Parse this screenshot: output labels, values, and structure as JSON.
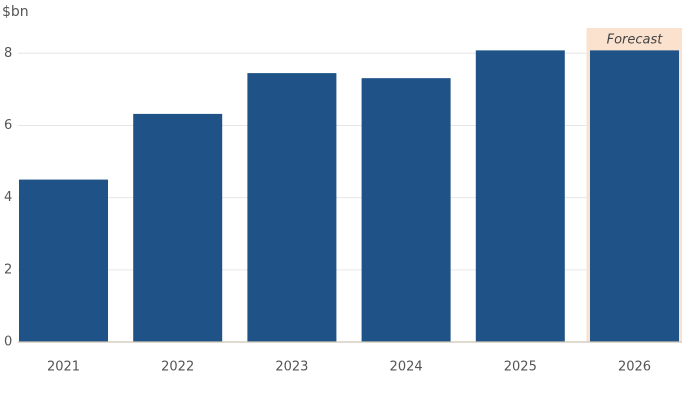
{
  "chart_data": {
    "type": "bar",
    "ylabel": "$bn",
    "categories": [
      "2021",
      "2022",
      "2023",
      "2024",
      "2025",
      "2026"
    ],
    "values": [
      4.5,
      6.32,
      7.45,
      7.31,
      8.08,
      8.08
    ],
    "color": "#1f5287",
    "ylim": [
      0,
      8.7
    ],
    "yticks": [
      0,
      2,
      4,
      6,
      8
    ],
    "grid": true,
    "annotation": "Forecast",
    "annotation_color": "#fbe2cf"
  }
}
